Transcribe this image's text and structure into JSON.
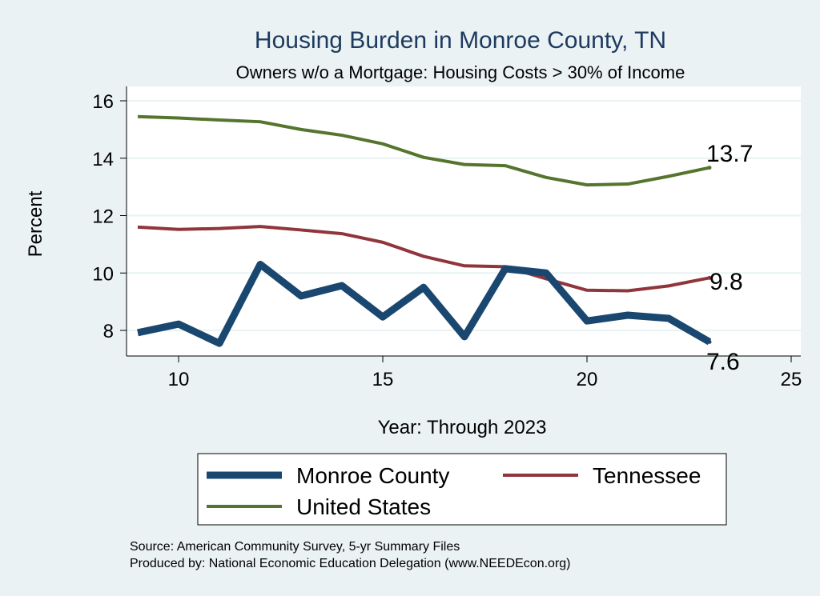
{
  "chart_data": {
    "type": "line",
    "title": "Housing Burden in Monroe County, TN",
    "subtitle": "Owners w/o a Mortgage: Housing Costs > 30% of Income",
    "xlabel": "Year: Through 2023",
    "ylabel": "Percent",
    "xlim": [
      9,
      25
    ],
    "ylim": [
      7.1,
      16.5
    ],
    "xticks": [
      10,
      15,
      20,
      25
    ],
    "yticks": [
      8,
      10,
      12,
      14,
      16
    ],
    "grid": true,
    "legend_placement": "bottom",
    "x": [
      9,
      10,
      11,
      12,
      13,
      14,
      15,
      16,
      17,
      18,
      19,
      20,
      21,
      22,
      23
    ],
    "series": [
      {
        "name": "Monroe County",
        "color": "#1a476f",
        "end_label": "7.6",
        "values": [
          7.92,
          8.22,
          7.55,
          10.3,
          9.2,
          9.56,
          8.47,
          9.5,
          7.78,
          10.15,
          10.0,
          8.33,
          8.53,
          8.42,
          7.6
        ]
      },
      {
        "name": "Tennessee",
        "color": "#90353b",
        "end_label": "9.8",
        "values": [
          11.6,
          11.52,
          11.55,
          11.62,
          11.5,
          11.37,
          11.07,
          10.58,
          10.25,
          10.22,
          9.8,
          9.4,
          9.38,
          9.55,
          9.83
        ]
      },
      {
        "name": "United States",
        "color": "#55752f",
        "end_label": "13.7",
        "values": [
          15.45,
          15.4,
          15.33,
          15.27,
          15.0,
          14.8,
          14.5,
          14.03,
          13.78,
          13.74,
          13.33,
          13.07,
          13.1,
          13.37,
          13.67
        ]
      }
    ],
    "notes": [
      "Source: American Community Survey, 5-yr Summary Files",
      "Produced by: National Economic Education Delegation (www.NEEDEcon.org)"
    ]
  }
}
